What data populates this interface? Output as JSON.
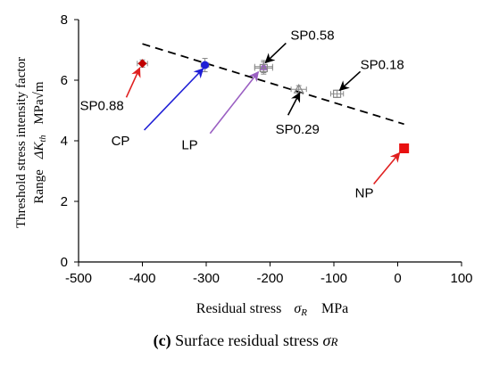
{
  "chart_data": {
    "type": "scatter",
    "xlabel_text": "Residual stress",
    "xlabel_symbol": "σ",
    "xlabel_sub": "R",
    "xlabel_unit": "MPa",
    "ylabel_line1": "Threshold stress intensity factor",
    "ylabel_line2_pre": "Range",
    "ylabel_symbol": "ΔK",
    "ylabel_sub": "th",
    "ylabel_unit": "MPa√m",
    "xlim": [
      -500,
      100
    ],
    "ylim": [
      0,
      8
    ],
    "xticks": [
      "-500",
      "-400",
      "-300",
      "-200",
      "-100",
      "0",
      "100"
    ],
    "yticks": [
      "0",
      "2",
      "4",
      "6",
      "8"
    ],
    "grid": false,
    "points": [
      {
        "label": "SP0.88",
        "x": -400,
        "y": 6.55,
        "xerr": 8,
        "yerr": 0.12,
        "color": "#c00000",
        "marker": "diamond"
      },
      {
        "label": "CP",
        "x": -302,
        "y": 6.5,
        "xerr": 6,
        "yerr": 0.22,
        "color": "#1f1fd6",
        "marker": "circle"
      },
      {
        "label": "LP",
        "x": -210,
        "y": 6.45,
        "xerr": 14,
        "yerr": 0.2,
        "color": "#9a5fc2",
        "marker": "triangle"
      },
      {
        "label": "SP0.58",
        "x": -210,
        "y": 6.4,
        "xerr": 14,
        "yerr": 0.2,
        "color": "#888888",
        "marker": "square-open"
      },
      {
        "label": "SP0.29",
        "x": -155,
        "y": 5.7,
        "xerr": 12,
        "yerr": 0.12,
        "color": "#888888",
        "marker": "triangle-open"
      },
      {
        "label": "SP0.18",
        "x": -95,
        "y": 5.55,
        "xerr": 10,
        "yerr": 0.12,
        "color": "#888888",
        "marker": "square-open"
      },
      {
        "label": "NP",
        "x": 10,
        "y": 3.75,
        "xerr": 0,
        "yerr": 0,
        "color": "#e81010",
        "marker": "square"
      }
    ],
    "trendline": {
      "x": [
        -400,
        10
      ],
      "y": [
        7.2,
        4.55
      ],
      "style": "dashed"
    },
    "caption": {
      "label": "(c)",
      "text": "Surface residual stress",
      "symbol": "σ",
      "sub": "R"
    }
  }
}
